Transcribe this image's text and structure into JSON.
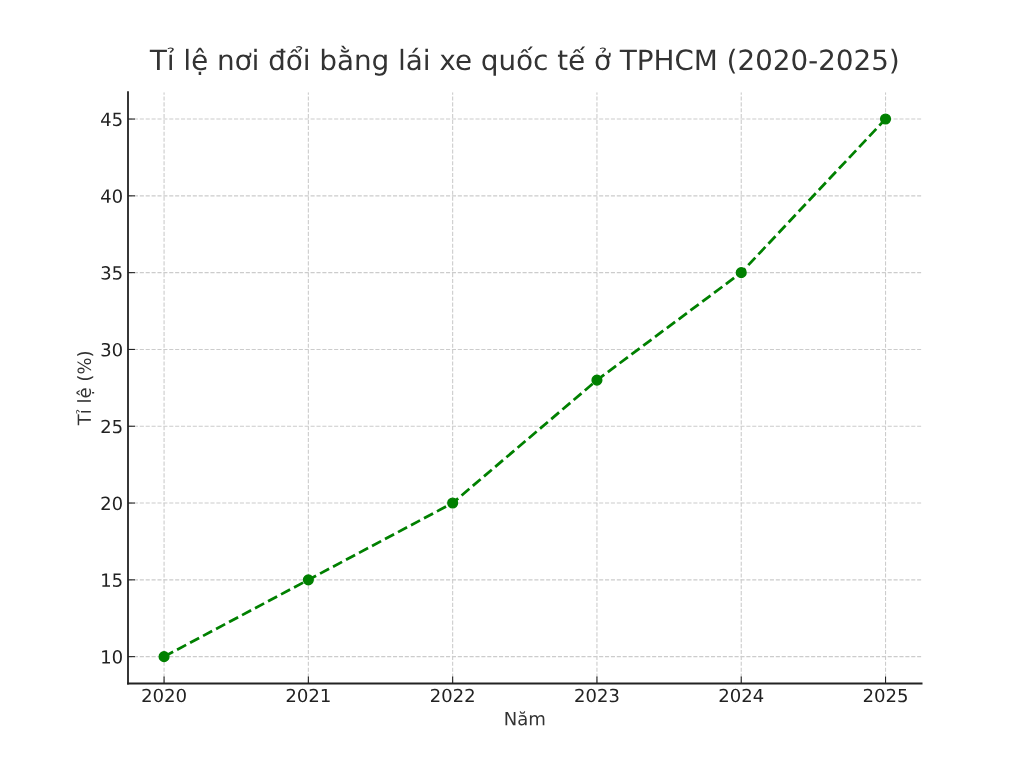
{
  "chart_data": {
    "type": "line",
    "title": "Tỉ lệ nơi đổi bằng lái xe quốc tế ở TPHCM (2020-2025)",
    "xlabel": "Năm",
    "ylabel": "Tỉ lệ (%)",
    "x": [
      2020,
      2021,
      2022,
      2023,
      2024,
      2025
    ],
    "series": [
      {
        "color": "#008000",
        "values": [
          10,
          15,
          20,
          28,
          35,
          45
        ]
      }
    ],
    "xlim": [
      2019.75,
      2025.25
    ],
    "xticks": [
      2020,
      2021,
      2022,
      2023,
      2024,
      2025
    ],
    "ylim": [
      8.25,
      46.75
    ],
    "yticks": [
      10,
      15,
      20,
      25,
      30,
      35,
      40,
      45
    ],
    "grid": true,
    "marker": "circle",
    "line_style": "dashed"
  }
}
